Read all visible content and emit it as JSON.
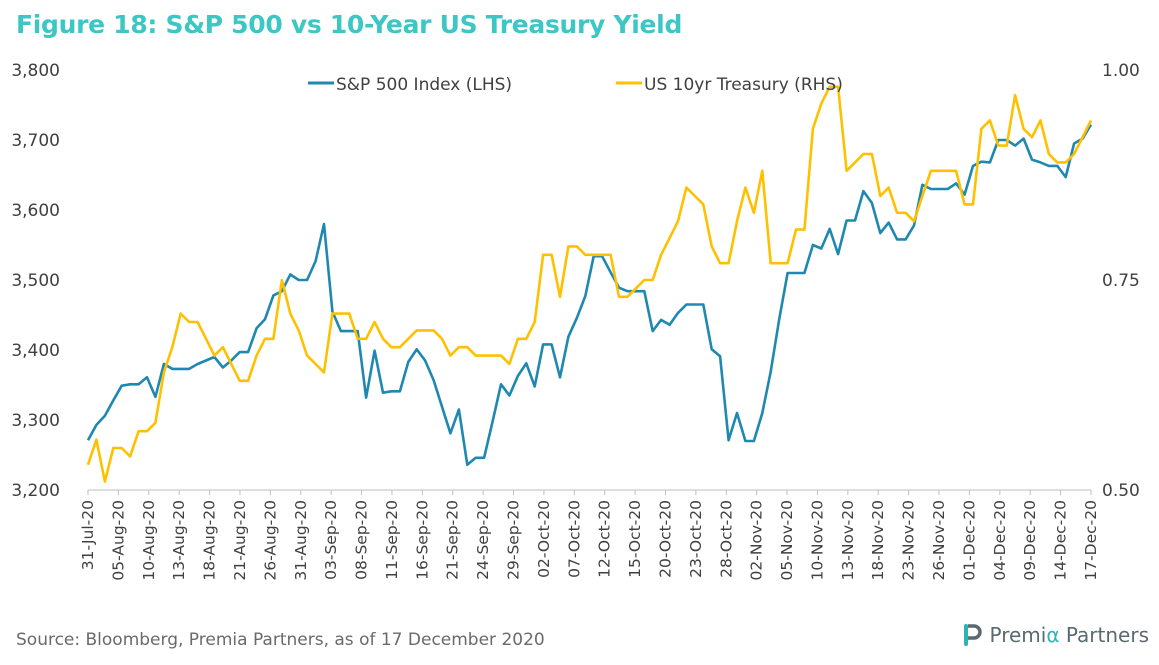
{
  "figure": {
    "title": "Figure 18: S&P 500 vs 10-Year US Treasury Yield",
    "source": "Source: Bloomberg, Premia Partners, as of 17 December 2020",
    "brand": {
      "name_left": "Premi",
      "name_alpha": "α",
      "name_right": " Partners",
      "logo_icon": "premia-p-logo-icon"
    }
  },
  "colors": {
    "sp500": "#1f88b1",
    "treasury": "#ffc000",
    "axis": "#bfbfbf",
    "text": "#404040",
    "title": "#3cc6c4"
  },
  "chart_data": {
    "type": "line",
    "title": "Figure 18: S&P 500 vs 10-Year US Treasury Yield",
    "legend_position": "top-center",
    "grid": false,
    "y_left": {
      "label": "",
      "ylim": [
        3200,
        3800
      ],
      "ticks": [
        "3,200",
        "3,300",
        "3,400",
        "3,500",
        "3,600",
        "3,700",
        "3,800"
      ]
    },
    "y_right": {
      "label": "",
      "ylim": [
        0.5,
        1.0
      ],
      "ticks": [
        "0.50",
        "0.75",
        "1.00"
      ]
    },
    "x_tick_labels": [
      "31-Jul-20",
      "05-Aug-20",
      "10-Aug-20",
      "13-Aug-20",
      "18-Aug-20",
      "21-Aug-20",
      "26-Aug-20",
      "31-Aug-20",
      "03-Sep-20",
      "08-Sep-20",
      "11-Sep-20",
      "16-Sep-20",
      "21-Sep-20",
      "24-Sep-20",
      "29-Sep-20",
      "02-Oct-20",
      "07-Oct-20",
      "12-Oct-20",
      "15-Oct-20",
      "20-Oct-20",
      "23-Oct-20",
      "28-Oct-20",
      "02-Nov-20",
      "05-Nov-20",
      "10-Nov-20",
      "13-Nov-20",
      "18-Nov-20",
      "23-Nov-20",
      "26-Nov-20",
      "01-Dec-20",
      "04-Dec-20",
      "09-Dec-20",
      "14-Dec-20",
      "17-Dec-20"
    ],
    "x": [
      "31-Jul-20",
      "01-Aug-20",
      "03-Aug-20",
      "04-Aug-20",
      "05-Aug-20",
      "06-Aug-20",
      "07-Aug-20",
      "08-Aug-20",
      "10-Aug-20",
      "11-Aug-20",
      "12-Aug-20",
      "13-Aug-20",
      "14-Aug-20",
      "15-Aug-20",
      "17-Aug-20",
      "18-Aug-20",
      "19-Aug-20",
      "20-Aug-20",
      "21-Aug-20",
      "22-Aug-20",
      "24-Aug-20",
      "25-Aug-20",
      "26-Aug-20",
      "27-Aug-20",
      "28-Aug-20",
      "29-Aug-20",
      "31-Aug-20",
      "01-Sep-20",
      "02-Sep-20",
      "03-Sep-20",
      "04-Sep-20",
      "05-Sep-20",
      "07-Sep-20",
      "08-Sep-20",
      "09-Sep-20",
      "10-Sep-20",
      "11-Sep-20",
      "12-Sep-20",
      "14-Sep-20",
      "15-Sep-20",
      "16-Sep-20",
      "17-Sep-20",
      "18-Sep-20",
      "19-Sep-20",
      "21-Sep-20",
      "22-Sep-20",
      "23-Sep-20",
      "24-Sep-20",
      "25-Sep-20",
      "26-Sep-20",
      "28-Sep-20",
      "29-Sep-20",
      "30-Sep-20",
      "01-Oct-20",
      "02-Oct-20",
      "03-Oct-20",
      "05-Oct-20",
      "06-Oct-20",
      "07-Oct-20",
      "08-Oct-20",
      "09-Oct-20",
      "10-Oct-20",
      "12-Oct-20",
      "13-Oct-20",
      "14-Oct-20",
      "15-Oct-20",
      "16-Oct-20",
      "17-Oct-20",
      "19-Oct-20",
      "20-Oct-20",
      "21-Oct-20",
      "22-Oct-20",
      "23-Oct-20",
      "24-Oct-20",
      "26-Oct-20",
      "27-Oct-20",
      "28-Oct-20",
      "29-Oct-20",
      "30-Oct-20",
      "31-Oct-20",
      "02-Nov-20",
      "03-Nov-20",
      "04-Nov-20",
      "05-Nov-20",
      "06-Nov-20",
      "07-Nov-20",
      "09-Nov-20",
      "10-Nov-20",
      "11-Nov-20",
      "12-Nov-20",
      "13-Nov-20",
      "14-Nov-20",
      "16-Nov-20",
      "17-Nov-20",
      "18-Nov-20",
      "19-Nov-20",
      "20-Nov-20",
      "21-Nov-20",
      "23-Nov-20",
      "24-Nov-20",
      "25-Nov-20",
      "26-Nov-20",
      "27-Nov-20",
      "28-Nov-20",
      "30-Nov-20",
      "01-Dec-20",
      "02-Dec-20",
      "03-Dec-20",
      "04-Dec-20",
      "05-Dec-20",
      "07-Dec-20",
      "08-Dec-20",
      "09-Dec-20",
      "10-Dec-20",
      "11-Dec-20",
      "12-Dec-20",
      "14-Dec-20",
      "15-Dec-20",
      "16-Dec-20",
      "17-Dec-20"
    ],
    "series": [
      {
        "name": "S&P 500 Index (LHS)",
        "axis": "left",
        "values": [
          3271,
          3293,
          3306,
          3328,
          3349,
          3351,
          3351,
          3361,
          3333,
          3380,
          3373,
          3373,
          3373,
          3380,
          3385,
          3390,
          3375,
          3385,
          3397,
          3397,
          3431,
          3444,
          3478,
          3484,
          3508,
          3500,
          3500,
          3527,
          3580,
          3455,
          3427,
          3427,
          3427,
          3332,
          3399,
          3339,
          3341,
          3341,
          3383,
          3401,
          3385,
          3357,
          3319,
          3281,
          3315,
          3236,
          3246,
          3246,
          3298,
          3351,
          3335,
          3363,
          3381,
          3348,
          3408,
          3408,
          3361,
          3419,
          3446,
          3477,
          3534,
          3534,
          3511,
          3489,
          3484,
          3484,
          3484,
          3427,
          3443,
          3436,
          3453,
          3465,
          3465,
          3465,
          3401,
          3391,
          3271,
          3310,
          3270,
          3270,
          3310,
          3369,
          3443,
          3510,
          3510,
          3510,
          3550,
          3545,
          3573,
          3537,
          3585,
          3585,
          3627,
          3610,
          3567,
          3582,
          3558,
          3558,
          3578,
          3636,
          3630,
          3630,
          3630,
          3638,
          3622,
          3663,
          3669,
          3668,
          3700,
          3700,
          3692,
          3702,
          3672,
          3668,
          3663,
          3663,
          3647,
          3695,
          3702,
          3722
        ]
      },
      {
        "name": "US 10yr Treasury (RHS)",
        "axis": "right",
        "values": [
          0.53,
          0.56,
          0.51,
          0.55,
          0.55,
          0.54,
          0.57,
          0.57,
          0.58,
          0.64,
          0.67,
          0.71,
          0.7,
          0.7,
          0.68,
          0.66,
          0.67,
          0.65,
          0.63,
          0.63,
          0.66,
          0.68,
          0.68,
          0.75,
          0.71,
          0.69,
          0.66,
          0.65,
          0.64,
          0.71,
          0.71,
          0.71,
          0.68,
          0.68,
          0.7,
          0.68,
          0.67,
          0.67,
          0.68,
          0.69,
          0.69,
          0.69,
          0.68,
          0.66,
          0.67,
          0.67,
          0.66,
          0.66,
          0.66,
          0.66,
          0.65,
          0.68,
          0.68,
          0.7,
          0.78,
          0.78,
          0.73,
          0.79,
          0.79,
          0.78,
          0.78,
          0.78,
          0.78,
          0.73,
          0.73,
          0.74,
          0.75,
          0.75,
          0.78,
          0.8,
          0.82,
          0.86,
          0.85,
          0.84,
          0.79,
          0.77,
          0.77,
          0.82,
          0.86,
          0.83,
          0.88,
          0.77,
          0.77,
          0.77,
          0.81,
          0.81,
          0.93,
          0.96,
          0.98,
          0.98,
          0.88,
          0.89,
          0.9,
          0.9,
          0.85,
          0.86,
          0.83,
          0.83,
          0.82,
          0.85,
          0.88,
          0.88,
          0.88,
          0.88,
          0.84,
          0.84,
          0.93,
          0.94,
          0.91,
          0.91,
          0.97,
          0.93,
          0.92,
          0.94,
          0.9,
          0.89,
          0.89,
          0.9,
          0.92,
          0.94
        ]
      }
    ]
  }
}
